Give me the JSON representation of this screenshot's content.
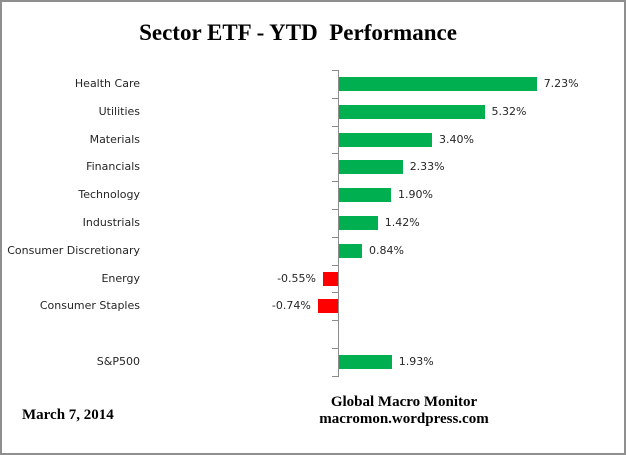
{
  "title": "Sector ETF - YTD  Performance",
  "footer": {
    "date": "March 7, 2014",
    "attribution_line1": "Global Macro Monitor",
    "attribution_line2": "macromon.wordpress.com"
  },
  "chart_data": {
    "type": "bar",
    "orientation": "horizontal",
    "title": "Sector ETF - YTD  Performance",
    "categories": [
      "Health Care",
      "Utilities",
      "Materials",
      "Financials",
      "Technology",
      "Industrials",
      "Consumer Discretionary",
      "Energy",
      "Consumer Staples",
      "",
      "S&P500"
    ],
    "values": [
      7.23,
      5.32,
      3.4,
      2.33,
      1.9,
      1.42,
      0.84,
      -0.55,
      -0.74,
      null,
      1.93
    ],
    "value_labels": [
      "7.23%",
      "5.32%",
      "3.40%",
      "2.33%",
      "1.90%",
      "1.42%",
      "0.84%",
      "-0.55%",
      "-0.74%",
      "",
      "1.93%"
    ],
    "xlim": [
      -1.0,
      8.0
    ],
    "gridlines": false,
    "legend": "none",
    "axis_tick_marks": "between-categories",
    "colors": {
      "positive_bar": "#00B050",
      "negative_bar": "#FF0000",
      "axis": "#8C8C8C",
      "label_text": "#262626",
      "title_text": "#000000"
    }
  }
}
